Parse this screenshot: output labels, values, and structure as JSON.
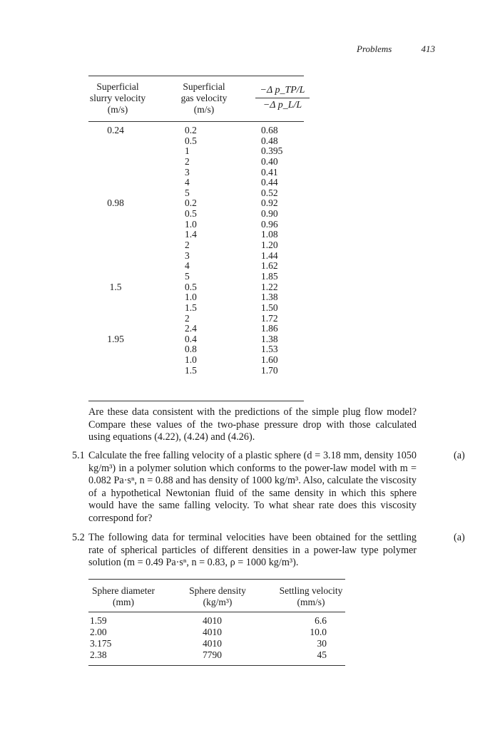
{
  "running_head": {
    "section": "Problems",
    "page_number": "413"
  },
  "table1": {
    "headers": {
      "slurry": [
        "Superficial",
        "slurry velocity",
        "(m/s)"
      ],
      "gas": [
        "Superficial",
        "gas velocity",
        "(m/s)"
      ],
      "ratio_numerator": "−Δ p_TP/L",
      "ratio_denominator": "−Δ p_L/L"
    },
    "groups": [
      {
        "slurry": "0.24",
        "rows": [
          [
            "0.2",
            "0.68"
          ],
          [
            "0.5",
            "0.48"
          ],
          [
            "1",
            "0.395"
          ],
          [
            "2",
            "0.40"
          ],
          [
            "3",
            "0.41"
          ],
          [
            "4",
            "0.44"
          ],
          [
            "5",
            "0.52"
          ]
        ]
      },
      {
        "slurry": "0.98",
        "rows": [
          [
            "0.2",
            "0.92"
          ],
          [
            "0.5",
            "0.90"
          ],
          [
            "1.0",
            "0.96"
          ],
          [
            "1.4",
            "1.08"
          ],
          [
            "2",
            "1.20"
          ],
          [
            "3",
            "1.44"
          ],
          [
            "4",
            "1.62"
          ],
          [
            "5",
            "1.85"
          ]
        ]
      },
      {
        "slurry": "1.5",
        "rows": [
          [
            "0.5",
            "1.22"
          ],
          [
            "1.0",
            "1.38"
          ],
          [
            "1.5",
            "1.50"
          ],
          [
            "2",
            "1.72"
          ],
          [
            "2.4",
            "1.86"
          ]
        ]
      },
      {
        "slurry": "1.95",
        "rows": [
          [
            "0.4",
            "1.38"
          ],
          [
            "0.8",
            "1.53"
          ],
          [
            "1.0",
            "1.60"
          ],
          [
            "1.5",
            "1.70"
          ]
        ]
      }
    ]
  },
  "question_text": "Are these data consistent with the predictions of the simple plug flow model? Compare these values of the two-phase pressure drop with those calculated using equations (4.22), (4.24) and (4.26).",
  "problems": [
    {
      "number": "5.1",
      "tag": "(a)",
      "text": "Calculate the free falling velocity of a plastic sphere (d = 3.18 mm, density 1050 kg/m³) in a polymer solution which conforms to the power-law model with m = 0.082 Pa·sⁿ, n = 0.88 and has density of 1000 kg/m³. Also, calculate the viscosity of a hypothetical Newtonian fluid of the same density in which this sphere would have the same falling velocity. To what shear rate does this viscosity correspond for?"
    },
    {
      "number": "5.2",
      "tag": "(a)",
      "text": "The following data for terminal velocities have been obtained for the settling rate of spherical particles of different densities in a power-law type polymer solution (m = 0.49 Pa·sⁿ, n = 0.83, ρ = 1000 kg/m³)."
    }
  ],
  "table2": {
    "headers": [
      [
        "Sphere diameter",
        "(mm)"
      ],
      [
        "Sphere density",
        "(kg/m³)"
      ],
      [
        "Settling velocity",
        "(mm/s)"
      ]
    ],
    "rows": [
      [
        "1.59",
        "4010",
        "6.6"
      ],
      [
        "2.00",
        "4010",
        "10.0"
      ],
      [
        "3.175",
        "4010",
        "30"
      ],
      [
        "2.38",
        "7790",
        "45"
      ]
    ]
  }
}
